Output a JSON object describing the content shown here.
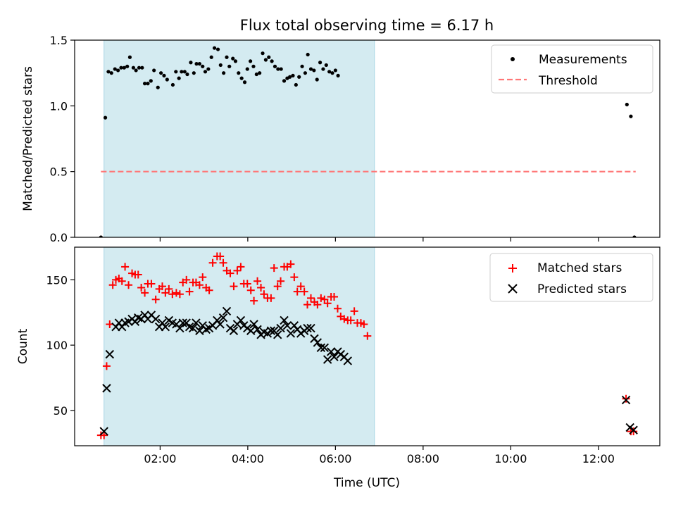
{
  "figure": {
    "title": "Flux total observing time = 6.17 h",
    "xlabel": "Time (UTC)",
    "x_unit": "hours (UTC, decimal)",
    "x_ticks": [
      {
        "value": 2,
        "label": "02:00"
      },
      {
        "value": 4,
        "label": "04:00"
      },
      {
        "value": 6,
        "label": "06:00"
      },
      {
        "value": 8,
        "label": "08:00"
      },
      {
        "value": 10,
        "label": "10:00"
      },
      {
        "value": 12,
        "label": "12:00"
      }
    ],
    "x_range": [
      0.05,
      13.4
    ]
  },
  "colors": {
    "measurements": "#000000",
    "threshold": "#ff7777",
    "matched": "#ff0000",
    "predicted": "#000000",
    "span_fill": "#d4ebf1",
    "span_edge": "#a9d6e5"
  },
  "chart_data": [
    {
      "type": "scatter",
      "panel": "top",
      "ylabel": "Matched/Predicted stars",
      "ylim": [
        0,
        1.5
      ],
      "y_ticks": [
        {
          "value": 0,
          "label": "0.0"
        },
        {
          "value": 0.5,
          "label": "0.5"
        },
        {
          "value": 1,
          "label": "1.0"
        },
        {
          "value": 1.5,
          "label": "1.5"
        }
      ],
      "highlight_span": {
        "x_start": 0.72,
        "x_end": 6.89
      },
      "legend": {
        "position": "top-right",
        "entries": [
          "Measurements",
          "Threshold"
        ]
      },
      "threshold": {
        "name": "Threshold",
        "y": 0.5,
        "x_start": 0.65,
        "x_end": 12.85
      },
      "series": [
        {
          "name": "Measurements",
          "marker": "dot",
          "points": [
            [
              0.65,
              0.0
            ],
            [
              0.75,
              0.91
            ],
            [
              0.82,
              1.26
            ],
            [
              0.89,
              1.25
            ],
            [
              0.97,
              1.28
            ],
            [
              1.04,
              1.27
            ],
            [
              1.11,
              1.29
            ],
            [
              1.18,
              1.29
            ],
            [
              1.25,
              1.3
            ],
            [
              1.31,
              1.37
            ],
            [
              1.39,
              1.29
            ],
            [
              1.45,
              1.27
            ],
            [
              1.52,
              1.29
            ],
            [
              1.59,
              1.29
            ],
            [
              1.65,
              1.17
            ],
            [
              1.72,
              1.17
            ],
            [
              1.79,
              1.19
            ],
            [
              1.86,
              1.27
            ],
            [
              1.95,
              1.14
            ],
            [
              2.02,
              1.25
            ],
            [
              2.09,
              1.23
            ],
            [
              2.16,
              1.2
            ],
            [
              2.29,
              1.16
            ],
            [
              2.36,
              1.26
            ],
            [
              2.43,
              1.21
            ],
            [
              2.49,
              1.26
            ],
            [
              2.56,
              1.26
            ],
            [
              2.62,
              1.24
            ],
            [
              2.7,
              1.33
            ],
            [
              2.77,
              1.25
            ],
            [
              2.83,
              1.32
            ],
            [
              2.9,
              1.32
            ],
            [
              2.97,
              1.3
            ],
            [
              3.03,
              1.26
            ],
            [
              3.1,
              1.28
            ],
            [
              3.17,
              1.37
            ],
            [
              3.24,
              1.44
            ],
            [
              3.32,
              1.43
            ],
            [
              3.38,
              1.31
            ],
            [
              3.45,
              1.25
            ],
            [
              3.52,
              1.37
            ],
            [
              3.58,
              1.3
            ],
            [
              3.66,
              1.36
            ],
            [
              3.72,
              1.34
            ],
            [
              3.79,
              1.25
            ],
            [
              3.86,
              1.21
            ],
            [
              3.93,
              1.18
            ],
            [
              3.99,
              1.28
            ],
            [
              4.06,
              1.34
            ],
            [
              4.13,
              1.3
            ],
            [
              4.2,
              1.24
            ],
            [
              4.27,
              1.25
            ],
            [
              4.34,
              1.4
            ],
            [
              4.41,
              1.35
            ],
            [
              4.48,
              1.37
            ],
            [
              4.55,
              1.34
            ],
            [
              4.62,
              1.3
            ],
            [
              4.69,
              1.28
            ],
            [
              4.76,
              1.28
            ],
            [
              4.83,
              1.19
            ],
            [
              4.9,
              1.21
            ],
            [
              4.96,
              1.22
            ],
            [
              5.03,
              1.23
            ],
            [
              5.1,
              1.16
            ],
            [
              5.17,
              1.22
            ],
            [
              5.24,
              1.3
            ],
            [
              5.31,
              1.25
            ],
            [
              5.37,
              1.39
            ],
            [
              5.44,
              1.28
            ],
            [
              5.51,
              1.27
            ],
            [
              5.58,
              1.2
            ],
            [
              5.65,
              1.33
            ],
            [
              5.72,
              1.28
            ],
            [
              5.79,
              1.31
            ],
            [
              5.86,
              1.26
            ],
            [
              5.93,
              1.25
            ],
            [
              6.0,
              1.27
            ],
            [
              6.06,
              1.23
            ],
            [
              12.65,
              1.01
            ],
            [
              12.74,
              0.92
            ],
            [
              12.82,
              0.0
            ]
          ]
        }
      ]
    },
    {
      "type": "scatter",
      "panel": "bottom",
      "ylabel": "Count",
      "ylim": [
        23,
        175
      ],
      "y_ticks": [
        {
          "value": 50,
          "label": "50"
        },
        {
          "value": 100,
          "label": "100"
        },
        {
          "value": 150,
          "label": "150"
        }
      ],
      "highlight_span": {
        "x_start": 0.72,
        "x_end": 6.89
      },
      "legend": {
        "position": "top-right",
        "entries": [
          "Matched stars",
          "Predicted stars"
        ]
      },
      "series": [
        {
          "name": "Matched stars",
          "marker": "plus",
          "points": [
            [
              0.65,
              31
            ],
            [
              0.72,
              31
            ],
            [
              0.78,
              84
            ],
            [
              0.85,
              116
            ],
            [
              0.92,
              146
            ],
            [
              0.99,
              150
            ],
            [
              1.06,
              151
            ],
            [
              1.13,
              149
            ],
            [
              1.2,
              160
            ],
            [
              1.28,
              146
            ],
            [
              1.36,
              155
            ],
            [
              1.43,
              154
            ],
            [
              1.5,
              154
            ],
            [
              1.57,
              144
            ],
            [
              1.65,
              140
            ],
            [
              1.72,
              147
            ],
            [
              1.8,
              147
            ],
            [
              1.9,
              135
            ],
            [
              1.98,
              143
            ],
            [
              2.05,
              145
            ],
            [
              2.12,
              140
            ],
            [
              2.2,
              143
            ],
            [
              2.28,
              139
            ],
            [
              2.37,
              140
            ],
            [
              2.45,
              139
            ],
            [
              2.52,
              148
            ],
            [
              2.6,
              150
            ],
            [
              2.67,
              141
            ],
            [
              2.75,
              148
            ],
            [
              2.82,
              148
            ],
            [
              2.9,
              146
            ],
            [
              2.97,
              152
            ],
            [
              3.05,
              144
            ],
            [
              3.12,
              142
            ],
            [
              3.2,
              163
            ],
            [
              3.3,
              168
            ],
            [
              3.37,
              168
            ],
            [
              3.44,
              163
            ],
            [
              3.52,
              157
            ],
            [
              3.6,
              155
            ],
            [
              3.68,
              145
            ],
            [
              3.76,
              157
            ],
            [
              3.84,
              160
            ],
            [
              3.91,
              147
            ],
            [
              3.99,
              147
            ],
            [
              4.07,
              142
            ],
            [
              4.14,
              134
            ],
            [
              4.22,
              149
            ],
            [
              4.3,
              144
            ],
            [
              4.37,
              139
            ],
            [
              4.45,
              136
            ],
            [
              4.53,
              136
            ],
            [
              4.6,
              159
            ],
            [
              4.68,
              145
            ],
            [
              4.75,
              149
            ],
            [
              4.83,
              160
            ],
            [
              4.9,
              160
            ],
            [
              4.98,
              162
            ],
            [
              5.06,
              152
            ],
            [
              5.13,
              141
            ],
            [
              5.21,
              145
            ],
            [
              5.29,
              141
            ],
            [
              5.36,
              131
            ],
            [
              5.44,
              136
            ],
            [
              5.52,
              133
            ],
            [
              5.59,
              131
            ],
            [
              5.67,
              136
            ],
            [
              5.75,
              135
            ],
            [
              5.82,
              132
            ],
            [
              5.9,
              137
            ],
            [
              5.97,
              137
            ],
            [
              6.05,
              128
            ],
            [
              6.12,
              122
            ],
            [
              6.2,
              120
            ],
            [
              6.28,
              119
            ],
            [
              6.35,
              119
            ],
            [
              6.43,
              126
            ],
            [
              6.5,
              117
            ],
            [
              6.58,
              117
            ],
            [
              6.65,
              116
            ],
            [
              6.73,
              107
            ],
            [
              12.63,
              59
            ],
            [
              12.74,
              34
            ],
            [
              12.8,
              34
            ]
          ]
        },
        {
          "name": "Predicted stars",
          "marker": "x",
          "points": [
            [
              0.72,
              34
            ],
            [
              0.78,
              67
            ],
            [
              0.85,
              93
            ],
            [
              0.99,
              114
            ],
            [
              1.06,
              117
            ],
            [
              1.13,
              114
            ],
            [
              1.2,
              117
            ],
            [
              1.28,
              118
            ],
            [
              1.36,
              120
            ],
            [
              1.43,
              118
            ],
            [
              1.5,
              121
            ],
            [
              1.57,
              120
            ],
            [
              1.65,
              123
            ],
            [
              1.72,
              120
            ],
            [
              1.8,
              123
            ],
            [
              1.9,
              120
            ],
            [
              1.98,
              114
            ],
            [
              2.05,
              117
            ],
            [
              2.12,
              114
            ],
            [
              2.2,
              119
            ],
            [
              2.28,
              117
            ],
            [
              2.37,
              116
            ],
            [
              2.45,
              113
            ],
            [
              2.52,
              117
            ],
            [
              2.6,
              117
            ],
            [
              2.67,
              114
            ],
            [
              2.75,
              113
            ],
            [
              2.82,
              117
            ],
            [
              2.9,
              111
            ],
            [
              2.97,
              115
            ],
            [
              3.05,
              112
            ],
            [
              3.12,
              113
            ],
            [
              3.2,
              115
            ],
            [
              3.3,
              119
            ],
            [
              3.37,
              116
            ],
            [
              3.44,
              121
            ],
            [
              3.52,
              126
            ],
            [
              3.6,
              113
            ],
            [
              3.68,
              111
            ],
            [
              3.76,
              116
            ],
            [
              3.84,
              119
            ],
            [
              3.91,
              115
            ],
            [
              3.99,
              113
            ],
            [
              4.07,
              111
            ],
            [
              4.14,
              116
            ],
            [
              4.22,
              112
            ],
            [
              4.3,
              108
            ],
            [
              4.37,
              110
            ],
            [
              4.45,
              109
            ],
            [
              4.53,
              111
            ],
            [
              4.6,
              111
            ],
            [
              4.68,
              108
            ],
            [
              4.75,
              113
            ],
            [
              4.83,
              119
            ],
            [
              4.9,
              115
            ],
            [
              4.98,
              109
            ],
            [
              5.06,
              115
            ],
            [
              5.13,
              112
            ],
            [
              5.21,
              109
            ],
            [
              5.29,
              111
            ],
            [
              5.36,
              113
            ],
            [
              5.44,
              113
            ],
            [
              5.52,
              105
            ],
            [
              5.59,
              102
            ],
            [
              5.67,
              98
            ],
            [
              5.75,
              98
            ],
            [
              5.82,
              89
            ],
            [
              5.9,
              95
            ],
            [
              5.97,
              91
            ],
            [
              6.05,
              95
            ],
            [
              6.12,
              93
            ],
            [
              6.2,
              91
            ],
            [
              6.28,
              88
            ],
            [
              12.63,
              58
            ],
            [
              12.72,
              37
            ],
            [
              12.8,
              35
            ]
          ]
        }
      ]
    }
  ]
}
